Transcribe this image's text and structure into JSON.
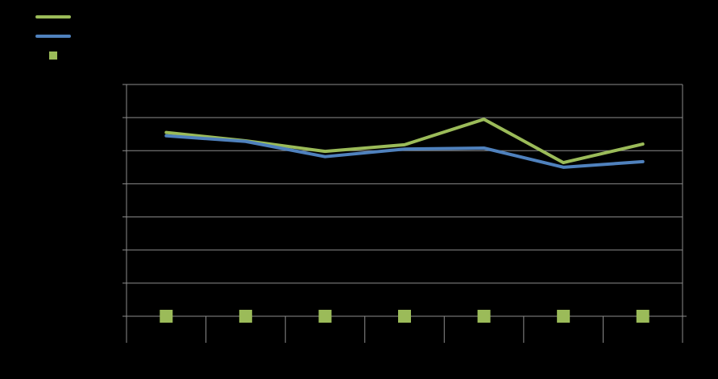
{
  "chart_data": {
    "type": "line",
    "title": "",
    "xlabel": "",
    "ylabel": "",
    "categories": [
      "",
      "",
      "",
      "",
      "",
      "",
      ""
    ],
    "ylim": [
      0,
      7
    ],
    "y_gridlines": 7,
    "grid": true,
    "legend": {
      "position": "top-left",
      "entries": 3
    },
    "series": [
      {
        "kind": "line",
        "color": "#9bbb59",
        "values": [
          5.55,
          5.3,
          4.98,
          5.18,
          5.95,
          4.64,
          5.2
        ]
      },
      {
        "kind": "line",
        "color": "#4f81bd",
        "values": [
          5.45,
          5.28,
          4.82,
          5.05,
          5.08,
          4.5,
          4.67
        ]
      },
      {
        "kind": "marker",
        "color": "#9bbb59",
        "values": [
          0,
          0,
          0,
          0,
          0,
          0,
          0
        ]
      }
    ]
  }
}
